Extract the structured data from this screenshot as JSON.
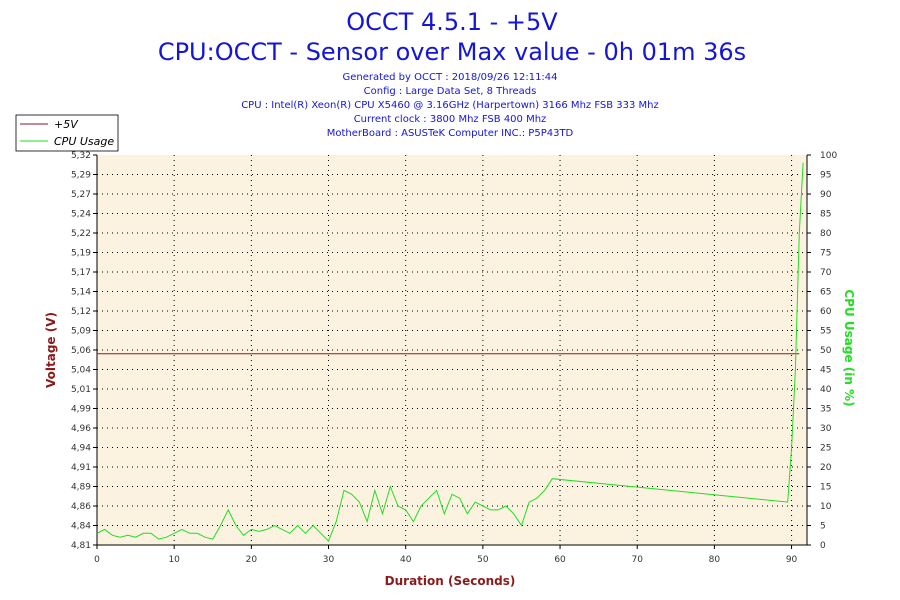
{
  "header": {
    "title": "OCCT 4.5.1 - +5V",
    "subtitle": "CPU:OCCT - Sensor over Max value - 0h 01m 36s",
    "info_lines": [
      "Generated by OCCT : 2018/09/26 12:11:44",
      "Config : Large Data Set, 8 Threads",
      "CPU : Intel(R) Xeon(R) CPU X5460 @ 3.16GHz (Harpertown) 3166 Mhz FSB 333 Mhz",
      "Current clock : 3800 Mhz FSB 400 Mhz",
      "MotherBoard : ASUSTeK Computer INC.: P5P43TD"
    ]
  },
  "legend": {
    "items": [
      {
        "label": "+5V",
        "color": "#8b1a1a"
      },
      {
        "label": "CPU Usage",
        "color": "#22dd22"
      }
    ]
  },
  "colors": {
    "plot_background": "#fbf3df",
    "voltage_axis_label": "#8b1a1a",
    "cpu_axis_label": "#22dd22",
    "title": "#1515d6",
    "grid": "#000000"
  },
  "chart_data": {
    "type": "line",
    "title": "OCCT 4.5.1 - +5V",
    "xlabel": "Duration (Seconds)",
    "ylabel_left": "Voltage (V)",
    "ylabel_right": "CPU Usage (in %)",
    "xlim": [
      0,
      92
    ],
    "ylim_left": [
      4.81,
      5.32
    ],
    "ylim_right": [
      0,
      100
    ],
    "x_ticks": [
      "0",
      "10",
      "20",
      "30",
      "40",
      "50",
      "60",
      "70",
      "80",
      "90"
    ],
    "x_tick_values": [
      0,
      10,
      20,
      30,
      40,
      50,
      60,
      70,
      80,
      90
    ],
    "y_left_ticks": [
      "5,32",
      "5,29",
      "5,27",
      "5,24",
      "5,22",
      "5,19",
      "5,17",
      "5,14",
      "5,12",
      "5,09",
      "5,06",
      "5,04",
      "5,01",
      "4,99",
      "4,96",
      "4,94",
      "4,91",
      "4,89",
      "4,86",
      "4,84",
      "4,81"
    ],
    "y_right_ticks": [
      "100",
      "95",
      "90",
      "85",
      "80",
      "75",
      "70",
      "65",
      "60",
      "55",
      "50",
      "45",
      "40",
      "35",
      "30",
      "25",
      "20",
      "15",
      "10",
      "5",
      "0"
    ],
    "grid": true,
    "legend_position": "top-left",
    "series": [
      {
        "name": "+5V",
        "axis": "left",
        "color": "#8b1a1a",
        "x": [
          0,
          91
        ],
        "y": [
          5.06,
          5.06
        ]
      },
      {
        "name": "CPU Usage",
        "axis": "right",
        "color": "#22dd22",
        "x": [
          0,
          1,
          2,
          3,
          4,
          5,
          6,
          7,
          8,
          9,
          10,
          11,
          12,
          13,
          14,
          15,
          16,
          17,
          18,
          19,
          20,
          21,
          22,
          23,
          24,
          25,
          26,
          27,
          28,
          29,
          30,
          31,
          32,
          33,
          34,
          35,
          36,
          37,
          38,
          39,
          40,
          41,
          42,
          43,
          44,
          45,
          46,
          47,
          48,
          49,
          50,
          51,
          52,
          53,
          54,
          55,
          56,
          57,
          58,
          59,
          89.5,
          90,
          90.5,
          91,
          91.5
        ],
        "y": [
          3,
          4,
          2.5,
          2,
          2.5,
          2,
          3,
          3,
          1.5,
          2,
          3,
          4,
          3,
          3,
          2,
          1.5,
          5,
          9,
          5,
          2.5,
          4,
          3.5,
          4,
          5,
          4,
          3,
          5,
          3,
          5,
          3,
          1,
          6,
          14,
          13,
          11,
          6,
          14,
          8,
          15,
          10,
          9,
          6,
          10,
          12,
          14,
          8,
          13,
          12,
          8,
          11,
          10,
          9,
          9,
          10,
          8,
          5,
          11,
          12,
          14,
          17,
          11,
          25,
          45,
          80,
          98
        ]
      }
    ]
  }
}
